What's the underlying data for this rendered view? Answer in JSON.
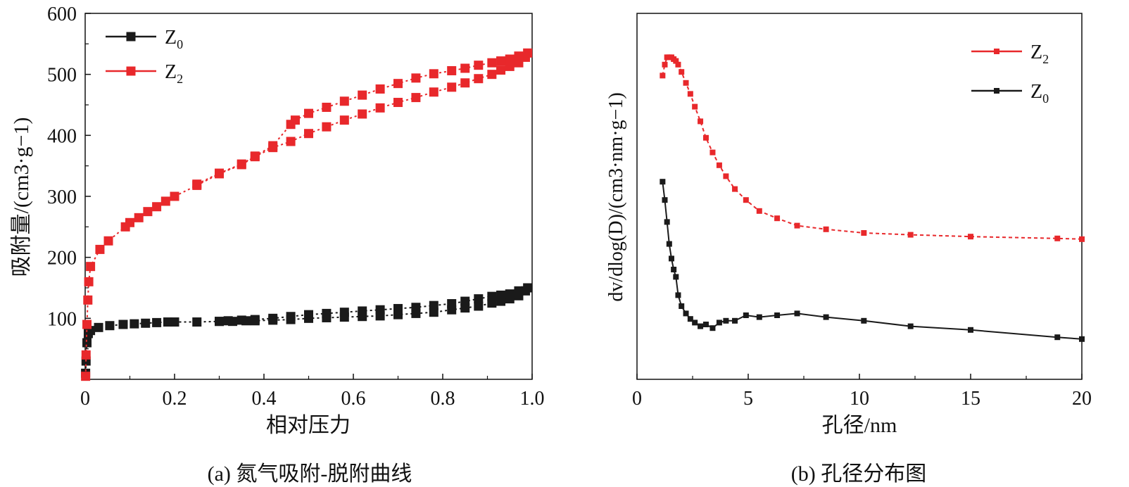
{
  "figure": {
    "caption_a": "(a) 氮气吸附-脱附曲线",
    "caption_b": "(b) 孔径分布图"
  },
  "colors": {
    "red": "#e8282b",
    "black": "#1a1a1a"
  },
  "chart_data": [
    {
      "type": "scatter",
      "title": "",
      "xlabel": "相对压力",
      "ylabel": "吸附量/(cm3·g−1)",
      "xlim": [
        0,
        1.0
      ],
      "ylim": [
        0,
        600
      ],
      "xticks": [
        "0",
        "0.2",
        "0.4",
        "0.6",
        "0.8",
        "1.0"
      ],
      "yticks": [
        "100",
        "200",
        "300",
        "400",
        "500",
        "600"
      ],
      "legend_position": "top-left",
      "legend": [
        {
          "name": "Z",
          "sub": "0",
          "color": "#1a1a1a"
        },
        {
          "name": "Z",
          "sub": "2",
          "color": "#e8282b"
        }
      ],
      "series": [
        {
          "name": "Z0 adsorption",
          "color": "#1a1a1a",
          "x": [
            0.001,
            0.002,
            0.004,
            0.007,
            0.012,
            0.03,
            0.055,
            0.085,
            0.11,
            0.135,
            0.16,
            0.185,
            0.2,
            0.25,
            0.3,
            0.33,
            0.36,
            0.38,
            0.42,
            0.46,
            0.5,
            0.54,
            0.58,
            0.62,
            0.66,
            0.7,
            0.74,
            0.78,
            0.82,
            0.85,
            0.88,
            0.91,
            0.93,
            0.95,
            0.97,
            0.985
          ],
          "y": [
            10,
            30,
            60,
            75,
            80,
            85,
            88,
            90,
            91,
            92,
            93,
            94,
            94,
            94,
            95,
            95,
            96,
            96,
            97,
            98,
            100,
            101,
            102,
            103,
            104,
            106,
            108,
            110,
            114,
            117,
            120,
            125,
            128,
            132,
            137,
            145
          ]
        },
        {
          "name": "Z0 desorption",
          "color": "#1a1a1a",
          "x": [
            0.99,
            0.97,
            0.95,
            0.93,
            0.91,
            0.88,
            0.85,
            0.82,
            0.78,
            0.74,
            0.7,
            0.66,
            0.62,
            0.58,
            0.54,
            0.5,
            0.46,
            0.42,
            0.38,
            0.35,
            0.32,
            0.3
          ],
          "y": [
            150,
            145,
            140,
            138,
            136,
            132,
            128,
            124,
            121,
            118,
            116,
            114,
            112,
            110,
            108,
            106,
            103,
            100,
            98,
            97,
            96,
            95
          ]
        },
        {
          "name": "Z2 adsorption",
          "color": "#e8282b",
          "x": [
            0.001,
            0.002,
            0.004,
            0.006,
            0.008,
            0.012,
            0.033,
            0.052,
            0.09,
            0.1,
            0.12,
            0.14,
            0.16,
            0.18,
            0.2,
            0.25,
            0.3,
            0.35,
            0.38,
            0.42,
            0.46,
            0.5,
            0.54,
            0.58,
            0.62,
            0.66,
            0.7,
            0.74,
            0.78,
            0.82,
            0.85,
            0.88,
            0.91,
            0.93,
            0.95,
            0.97,
            0.985
          ],
          "y": [
            5,
            40,
            90,
            130,
            160,
            185,
            213,
            227,
            250,
            257,
            265,
            275,
            283,
            292,
            300,
            318,
            337,
            352,
            365,
            380,
            390,
            403,
            414,
            425,
            435,
            445,
            454,
            462,
            471,
            479,
            486,
            493,
            500,
            507,
            513,
            519,
            528
          ]
        },
        {
          "name": "Z2 desorption",
          "color": "#e8282b",
          "x": [
            0.99,
            0.97,
            0.95,
            0.93,
            0.91,
            0.88,
            0.85,
            0.82,
            0.78,
            0.74,
            0.7,
            0.66,
            0.62,
            0.58,
            0.54,
            0.5,
            0.47,
            0.46,
            0.42,
            0.38,
            0.35,
            0.3,
            0.25
          ],
          "y": [
            535,
            530,
            525,
            522,
            519,
            515,
            510,
            506,
            501,
            494,
            485,
            476,
            466,
            456,
            446,
            436,
            425,
            418,
            383,
            366,
            353,
            338,
            320
          ]
        }
      ]
    },
    {
      "type": "line",
      "title": "",
      "xlabel": "孔径/nm",
      "ylabel": "dv/dlog(D)/(cm3·nm·g−1)",
      "xlim": [
        0,
        20
      ],
      "ylim": [
        0,
        1
      ],
      "xticks": [
        "0",
        "5",
        "10",
        "15",
        "20"
      ],
      "legend_position": "top-right",
      "legend": [
        {
          "name": "Z",
          "sub": "2",
          "color": "#e8282b"
        },
        {
          "name": "Z",
          "sub": "0",
          "color": "#1a1a1a"
        }
      ],
      "series": [
        {
          "name": "Z2",
          "color": "#e8282b",
          "x": [
            1.15,
            1.25,
            1.35,
            1.45,
            1.55,
            1.65,
            1.75,
            1.85,
            2.0,
            2.2,
            2.4,
            2.6,
            2.85,
            3.1,
            3.4,
            3.7,
            4.0,
            4.4,
            4.9,
            5.5,
            6.3,
            7.2,
            8.5,
            10.2,
            12.3,
            15.0,
            18.9,
            20.0
          ],
          "y": [
            0.83,
            0.86,
            0.88,
            0.88,
            0.88,
            0.875,
            0.87,
            0.86,
            0.84,
            0.81,
            0.78,
            0.745,
            0.705,
            0.66,
            0.62,
            0.585,
            0.555,
            0.52,
            0.49,
            0.46,
            0.44,
            0.42,
            0.41,
            0.4,
            0.395,
            0.39,
            0.385,
            0.383
          ]
        },
        {
          "name": "Z0",
          "color": "#1a1a1a",
          "x": [
            1.15,
            1.25,
            1.35,
            1.45,
            1.55,
            1.65,
            1.75,
            1.85,
            2.0,
            2.2,
            2.4,
            2.6,
            2.85,
            3.1,
            3.4,
            3.7,
            4.0,
            4.4,
            4.9,
            5.5,
            6.3,
            7.2,
            8.5,
            10.2,
            12.3,
            15.0,
            18.9,
            20.0
          ],
          "y": [
            0.54,
            0.49,
            0.43,
            0.37,
            0.33,
            0.3,
            0.28,
            0.23,
            0.2,
            0.18,
            0.165,
            0.155,
            0.145,
            0.15,
            0.14,
            0.155,
            0.16,
            0.16,
            0.175,
            0.17,
            0.175,
            0.18,
            0.17,
            0.16,
            0.145,
            0.135,
            0.115,
            0.11
          ]
        }
      ]
    }
  ]
}
